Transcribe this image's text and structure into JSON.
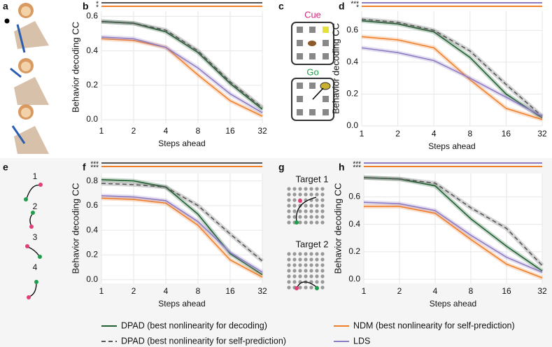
{
  "panel_labels": [
    "a",
    "b",
    "c",
    "d",
    "e",
    "f",
    "g",
    "h"
  ],
  "illustrations": {
    "cue": "Cue",
    "go": "Go",
    "targets": [
      "Target 1",
      "Target 2"
    ],
    "movements": [
      "1",
      "2",
      "3",
      "4"
    ]
  },
  "chart_data": [
    {
      "type": "line",
      "xlabel": "Steps ahead",
      "ylabel": "Behavior decoding CC",
      "grid": true,
      "legend": "bottom",
      "categories": [
        "1",
        "2",
        "4",
        "8",
        "16",
        "32"
      ],
      "ylim": [
        -0.02,
        0.63
      ],
      "yticks": [
        {
          "value": 0,
          "label": "0.0"
        },
        0.2,
        0.4,
        0.6
      ],
      "significance": [
        {
          "label": "*",
          "color": "#555555"
        },
        {
          "label": "*",
          "color": "#f07f2a"
        }
      ],
      "series": [
        {
          "name": "DPAD (best nonlinearity for decoding)",
          "color": "#1f5e2e",
          "dash": false,
          "values": [
            0.57,
            0.56,
            0.51,
            0.39,
            0.21,
            0.06
          ]
        },
        {
          "name": "DPAD (best nonlinearity for self-prediction)",
          "color": "#555555",
          "dash": true,
          "values": [
            0.57,
            0.56,
            0.52,
            0.4,
            0.22,
            0.07
          ]
        },
        {
          "name": "NDM (best nonlinearity for self-prediction)",
          "color": "#f07f2a",
          "dash": false,
          "values": [
            0.47,
            0.46,
            0.42,
            0.26,
            0.11,
            0.02
          ]
        },
        {
          "name": "LDS",
          "color": "#8e7cc3",
          "dash": false,
          "values": [
            0.48,
            0.47,
            0.42,
            0.3,
            0.15,
            0.04
          ]
        }
      ]
    },
    {
      "type": "line",
      "xlabel": "Steps ahead",
      "ylabel": "Behavior decoding CC",
      "grid": true,
      "categories": [
        "1",
        "2",
        "4",
        "8",
        "16",
        "32"
      ],
      "ylim": [
        0,
        0.72
      ],
      "yticks": [
        {
          "value": 0,
          "label": "0.0"
        },
        0.2,
        0.4,
        0.6
      ],
      "significance": [
        {
          "label": "***",
          "color": "#8e7cc3"
        },
        {
          "label": "*",
          "color": "#f07f2a"
        }
      ],
      "series": [
        {
          "color": "#1f5e2e",
          "dash": false,
          "values": [
            0.66,
            0.64,
            0.59,
            0.43,
            0.2,
            0.05
          ]
        },
        {
          "color": "#555555",
          "dash": true,
          "values": [
            0.67,
            0.65,
            0.6,
            0.47,
            0.26,
            0.06
          ]
        },
        {
          "color": "#f07f2a",
          "dash": false,
          "values": [
            0.56,
            0.54,
            0.49,
            0.29,
            0.11,
            0.04
          ]
        },
        {
          "color": "#8e7cc3",
          "dash": false,
          "values": [
            0.49,
            0.46,
            0.41,
            0.3,
            0.18,
            0.06
          ]
        }
      ]
    },
    {
      "type": "line",
      "xlabel": "Steps ahead",
      "ylabel": "Behavior decoding CC",
      "grid": true,
      "categories": [
        "1",
        "2",
        "4",
        "8",
        "16",
        "32"
      ],
      "ylim": [
        -0.03,
        0.86
      ],
      "yticks": [
        {
          "value": 0,
          "label": "0.0"
        },
        0.2,
        0.4,
        0.6,
        0.8
      ],
      "significance": [
        {
          "label": "***",
          "color": "#555555"
        },
        {
          "label": "***",
          "color": "#f07f2a"
        }
      ],
      "series": [
        {
          "color": "#1f5e2e",
          "dash": false,
          "values": [
            0.81,
            0.8,
            0.75,
            0.53,
            0.21,
            0.04
          ]
        },
        {
          "color": "#555555",
          "dash": true,
          "values": [
            0.78,
            0.77,
            0.75,
            0.6,
            0.37,
            0.15
          ]
        },
        {
          "color": "#f07f2a",
          "dash": false,
          "values": [
            0.66,
            0.65,
            0.62,
            0.44,
            0.16,
            0.02
          ]
        },
        {
          "color": "#8e7cc3",
          "dash": false,
          "values": [
            0.68,
            0.67,
            0.64,
            0.47,
            0.22,
            0.06
          ]
        }
      ]
    },
    {
      "type": "line",
      "xlabel": "Steps ahead",
      "ylabel": "Behavior decoding CC",
      "grid": true,
      "categories": [
        "1",
        "2",
        "4",
        "8",
        "16",
        "32"
      ],
      "ylim": [
        -0.03,
        0.77
      ],
      "yticks": [
        {
          "value": 0,
          "label": "0.0"
        },
        0.2,
        0.4,
        0.6
      ],
      "significance": [
        {
          "label": "***",
          "color": "#8e7cc3"
        },
        {
          "label": "***",
          "color": "#f07f2a"
        }
      ],
      "series": [
        {
          "color": "#1f5e2e",
          "dash": false,
          "values": [
            0.74,
            0.73,
            0.68,
            0.44,
            0.24,
            0.06
          ]
        },
        {
          "color": "#555555",
          "dash": true,
          "values": [
            0.74,
            0.73,
            0.7,
            0.52,
            0.37,
            0.1
          ]
        },
        {
          "color": "#f07f2a",
          "dash": false,
          "values": [
            0.53,
            0.53,
            0.48,
            0.29,
            0.11,
            0.01
          ]
        },
        {
          "color": "#8e7cc3",
          "dash": false,
          "values": [
            0.56,
            0.55,
            0.5,
            0.32,
            0.16,
            0.05
          ]
        }
      ]
    }
  ]
}
